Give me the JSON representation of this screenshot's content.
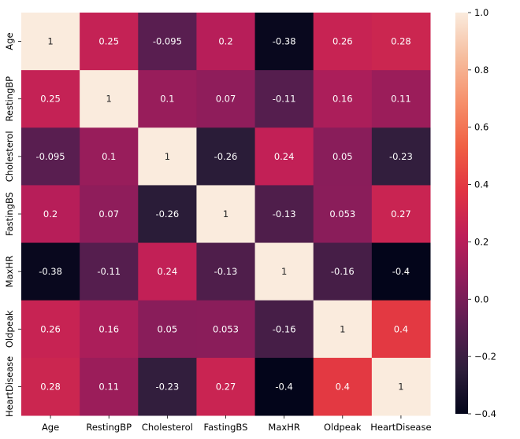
{
  "top_fragment": "",
  "chart_data": {
    "type": "heatmap",
    "title": "",
    "xlabel": "",
    "ylabel": "",
    "x_labels": [
      "Age",
      "RestingBP",
      "Cholesterol",
      "FastingBS",
      "MaxHR",
      "Oldpeak",
      "HeartDisease"
    ],
    "y_labels": [
      "Age",
      "RestingBP",
      "Cholesterol",
      "FastingBS",
      "MaxHR",
      "Oldpeak",
      "HeartDisease"
    ],
    "values": [
      [
        1,
        0.25,
        -0.095,
        0.2,
        -0.38,
        0.26,
        0.28
      ],
      [
        0.25,
        1,
        0.1,
        0.07,
        -0.11,
        0.16,
        0.11
      ],
      [
        -0.095,
        0.1,
        1,
        -0.26,
        0.24,
        0.05,
        -0.23
      ],
      [
        0.2,
        0.07,
        -0.26,
        1,
        -0.13,
        0.053,
        0.27
      ],
      [
        -0.38,
        -0.11,
        0.24,
        -0.13,
        1,
        -0.16,
        -0.4
      ],
      [
        0.26,
        0.16,
        0.05,
        0.053,
        -0.16,
        1,
        0.4
      ],
      [
        0.28,
        0.11,
        -0.23,
        0.27,
        -0.4,
        0.4,
        1
      ]
    ],
    "annotations": [
      [
        "1",
        "0.25",
        "-0.095",
        "0.2",
        "-0.38",
        "0.26",
        "0.28"
      ],
      [
        "0.25",
        "1",
        "0.1",
        "0.07",
        "-0.11",
        "0.16",
        "0.11"
      ],
      [
        "-0.095",
        "0.1",
        "1",
        "-0.26",
        "0.24",
        "0.05",
        "-0.23"
      ],
      [
        "0.2",
        "0.07",
        "-0.26",
        "1",
        "-0.13",
        "0.053",
        "0.27"
      ],
      [
        "-0.38",
        "-0.11",
        "0.24",
        "-0.13",
        "1",
        "-0.16",
        "-0.4"
      ],
      [
        "0.26",
        "0.16",
        "0.05",
        "0.053",
        "-0.16",
        "1",
        "0.4"
      ],
      [
        "0.28",
        "0.11",
        "-0.23",
        "0.27",
        "-0.4",
        "0.4",
        "1"
      ]
    ],
    "colorbar": {
      "min": -0.4,
      "max": 1.0,
      "ticks": [
        -0.4,
        -0.2,
        0.0,
        0.2,
        0.4,
        0.6,
        0.8,
        1.0
      ],
      "tick_labels": [
        "−0.4",
        "−0.2",
        "0.0",
        "0.2",
        "0.4",
        "0.6",
        "0.8",
        "1.0"
      ]
    },
    "colormap": "rocket",
    "colormap_stops": [
      "#03051a",
      "#2e1e3b",
      "#5b1e51",
      "#8e1d5b",
      "#be1e59",
      "#e13342",
      "#f06043",
      "#f6906b",
      "#f6bd9e",
      "#faebdd"
    ]
  }
}
